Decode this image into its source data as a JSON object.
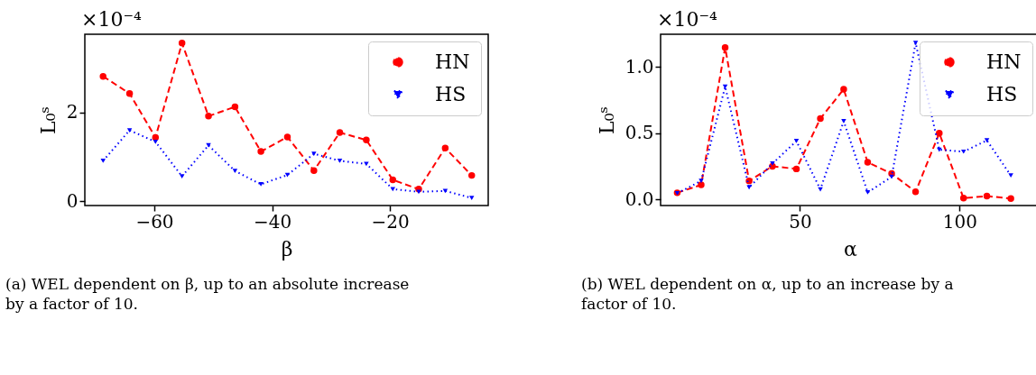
{
  "chart_data": [
    {
      "type": "line",
      "xlabel": "β",
      "ylabel": "L₀ˢ",
      "annotations": [
        "×10⁻⁴",
        "(a) WEL dependent on β, up to an absolute increase by a factor of 10."
      ],
      "x": [
        -68.7,
        -64.2,
        -59.8,
        -55.3,
        -50.8,
        -46.3,
        -41.9,
        -37.4,
        -32.9,
        -28.5,
        -24.0,
        -19.5,
        -15.1,
        -10.6,
        -6.1
      ],
      "series": [
        {
          "name": "HN",
          "color": "#ff0000",
          "marker": "circle",
          "line_style": "dashed",
          "values": [
            2.82,
            2.43,
            1.44,
            3.57,
            1.92,
            2.13,
            1.12,
            1.45,
            0.69,
            1.55,
            1.38,
            0.48,
            0.27,
            1.2,
            0.58
          ]
        },
        {
          "name": "HS",
          "color": "#0000ff",
          "marker": "triangle",
          "line_style": "dotted",
          "values": [
            0.91,
            1.6,
            1.34,
            0.56,
            1.26,
            0.68,
            0.38,
            0.59,
            1.07,
            0.91,
            0.84,
            0.27,
            0.21,
            0.23,
            0.07
          ]
        }
      ],
      "xlim": [
        -71.8,
        -3.3
      ],
      "ylim": [
        -0.1,
        3.77
      ],
      "xticks": [
        -60,
        -40,
        -20
      ],
      "yticks": [
        0,
        2
      ],
      "grid": false,
      "legend": "top right"
    },
    {
      "type": "line",
      "xlabel": "α",
      "ylabel": "L₀ˢ",
      "annotations": [
        "×10⁻⁴",
        "(b) WEL dependent on α, up to an increase by a factor of 10."
      ],
      "x": [
        11.6,
        19.1,
        26.6,
        34.1,
        41.4,
        48.9,
        56.4,
        63.7,
        71.2,
        78.7,
        86.2,
        93.6,
        101.2,
        108.5,
        116.0
      ],
      "series": [
        {
          "name": "HN",
          "color": "#ff0000",
          "marker": "circle",
          "line_style": "dashed",
          "values": [
            0.05,
            0.11,
            1.145,
            0.14,
            0.25,
            0.23,
            0.61,
            0.83,
            0.28,
            0.195,
            0.057,
            0.5,
            0.01,
            0.025,
            0.007
          ]
        },
        {
          "name": "HS",
          "color": "#0000ff",
          "marker": "triangle",
          "line_style": "dotted",
          "values": [
            0.046,
            0.14,
            0.85,
            0.09,
            0.27,
            0.44,
            0.076,
            0.59,
            0.053,
            0.17,
            1.18,
            0.375,
            0.36,
            0.445,
            0.18
          ]
        }
      ],
      "xlim": [
        6.4,
        125
      ],
      "ylim": [
        -0.046,
        1.245
      ],
      "xticks": [
        50,
        100
      ],
      "yticks": [
        {
          "value": 0,
          "label": "0.0"
        },
        0.5,
        {
          "value": 1,
          "label": "1.0"
        }
      ],
      "grid": false,
      "legend": "top right"
    }
  ]
}
